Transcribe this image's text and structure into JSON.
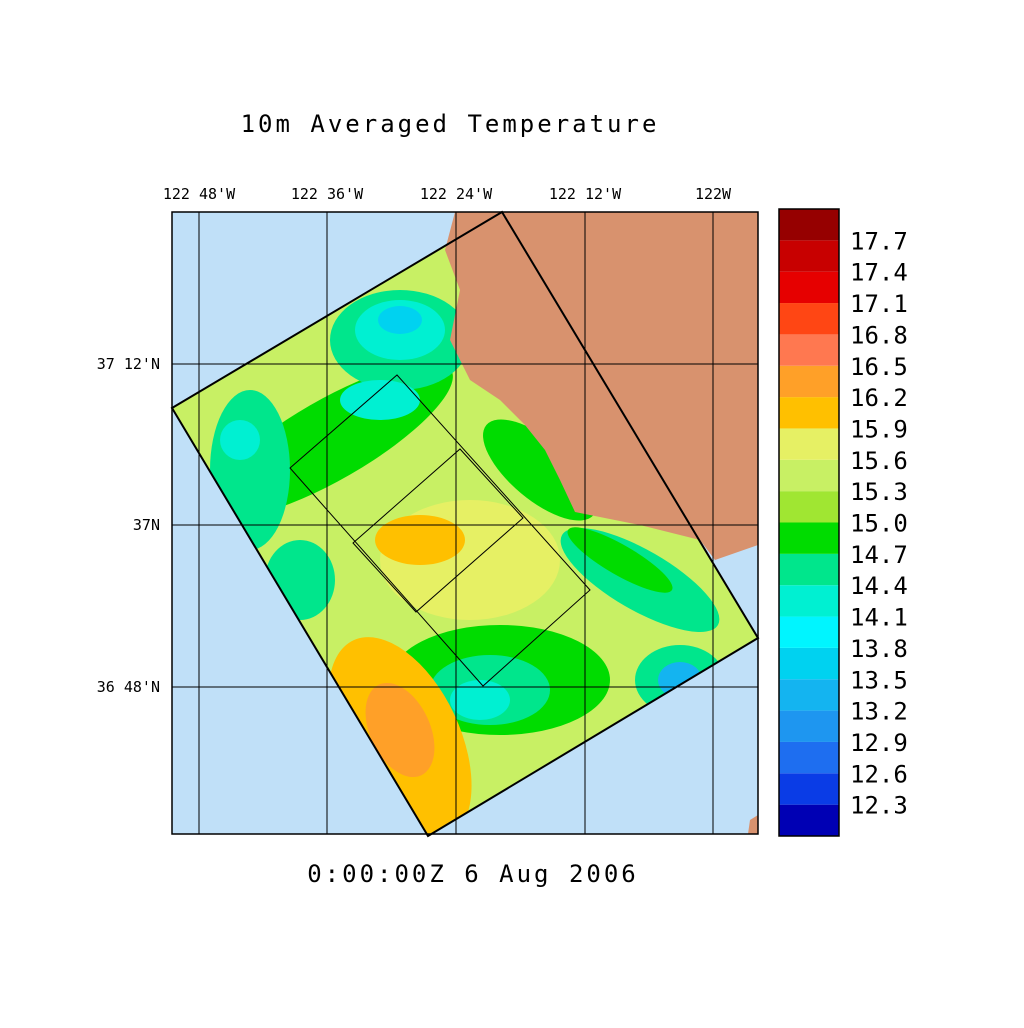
{
  "map": {
    "title": "10m Averaged Temperature",
    "time_label": "0:00:00Z   6 Aug 2006",
    "lon_labels": [
      "122 48'W",
      "122 36'W",
      "122 24'W",
      "122 12'W",
      "122W"
    ],
    "lat_labels": [
      "37 12'N",
      "37N",
      "36 48'N"
    ],
    "colorbar": {
      "labels": [
        12.3,
        12.6,
        12.9,
        13.2,
        13.5,
        13.8,
        14.1,
        14.4,
        14.7,
        {
          "value": 15,
          "label": "15.0"
        },
        15.3,
        15.6,
        15.9,
        16.2,
        16.5,
        16.8,
        17.1,
        17.4,
        17.7
      ],
      "colors": [
        "#0000b4",
        "#0a3ce6",
        "#1e6ef0",
        "#1e96f0",
        "#14b4f0",
        "#00d2f0",
        "#00f5ff",
        "#00f0d2",
        "#00e68c",
        "#00dc00",
        "#a0e632",
        "#c8f064",
        "#e6f064",
        "#ffc000",
        "#ffa028",
        "#ff7850",
        "#ff4614",
        "#e60000",
        "#c80000",
        "#960000"
      ]
    }
  }
}
